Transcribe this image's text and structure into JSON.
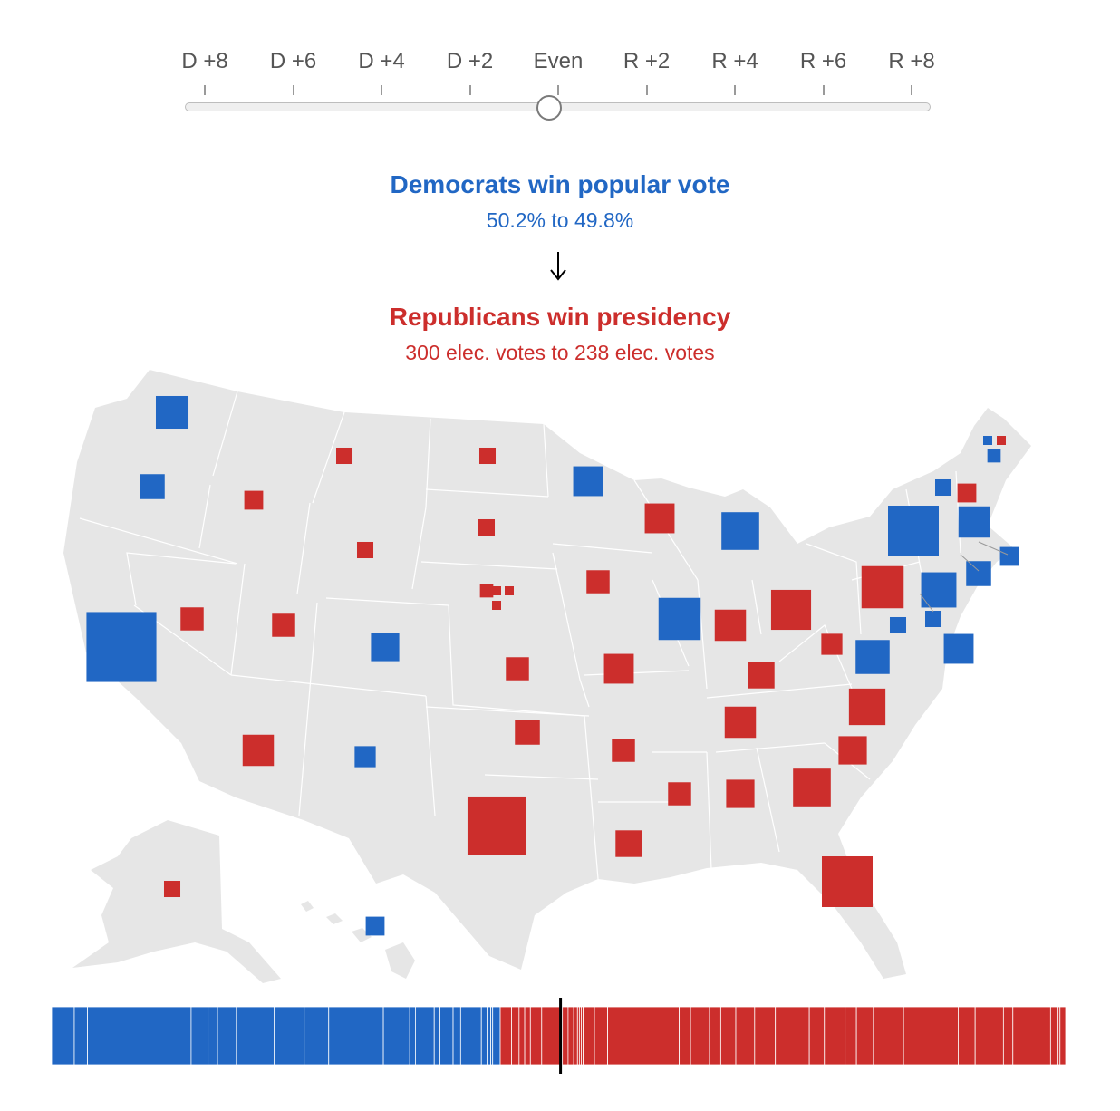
{
  "slider": {
    "ticks": [
      "D +8",
      "D +6",
      "D +4",
      "D +2",
      "Even",
      "R +2",
      "R +4",
      "R +6",
      "R +8"
    ],
    "selected": "Even",
    "value_margin": -0.2
  },
  "popular_vote": {
    "headline": "Democrats win popular vote",
    "detail": "50.2% to 49.8%",
    "color": "#2167c4"
  },
  "presidency": {
    "headline": "Republicans win presidency",
    "detail": "300 elec. votes to 238 elec. votes",
    "color": "#cc2e2c"
  },
  "colors": {
    "dem": "#2167c4",
    "rep": "#cc2e2c",
    "land": "#e6e6e6",
    "border": "#ffffff"
  },
  "map_data": {
    "states": [
      {
        "state": "WA",
        "ev": 12,
        "winner": "D"
      },
      {
        "state": "OR",
        "ev": 7,
        "winner": "D"
      },
      {
        "state": "CA",
        "ev": 55,
        "winner": "D"
      },
      {
        "state": "NV",
        "ev": 6,
        "winner": "R"
      },
      {
        "state": "ID",
        "ev": 4,
        "winner": "R"
      },
      {
        "state": "MT",
        "ev": 3,
        "winner": "R"
      },
      {
        "state": "WY",
        "ev": 3,
        "winner": "R"
      },
      {
        "state": "UT",
        "ev": 6,
        "winner": "R"
      },
      {
        "state": "AZ",
        "ev": 11,
        "winner": "R"
      },
      {
        "state": "CO",
        "ev": 9,
        "winner": "D"
      },
      {
        "state": "NM",
        "ev": 5,
        "winner": "D"
      },
      {
        "state": "ND",
        "ev": 3,
        "winner": "R"
      },
      {
        "state": "SD",
        "ev": 3,
        "winner": "R"
      },
      {
        "state": "NE",
        "ev": 2,
        "winner": "R"
      },
      {
        "state": "NE-1",
        "ev": 1,
        "winner": "R"
      },
      {
        "state": "NE-2",
        "ev": 1,
        "winner": "R"
      },
      {
        "state": "NE-3",
        "ev": 1,
        "winner": "R"
      },
      {
        "state": "KS",
        "ev": 6,
        "winner": "R"
      },
      {
        "state": "OK",
        "ev": 7,
        "winner": "R"
      },
      {
        "state": "TX",
        "ev": 38,
        "winner": "R"
      },
      {
        "state": "MN",
        "ev": 10,
        "winner": "D"
      },
      {
        "state": "IA",
        "ev": 6,
        "winner": "R"
      },
      {
        "state": "MO",
        "ev": 10,
        "winner": "R"
      },
      {
        "state": "AR",
        "ev": 6,
        "winner": "R"
      },
      {
        "state": "LA",
        "ev": 8,
        "winner": "R"
      },
      {
        "state": "WI",
        "ev": 10,
        "winner": "R"
      },
      {
        "state": "IL",
        "ev": 20,
        "winner": "D"
      },
      {
        "state": "MI",
        "ev": 16,
        "winner": "D"
      },
      {
        "state": "IN",
        "ev": 11,
        "winner": "R"
      },
      {
        "state": "OH",
        "ev": 18,
        "winner": "R"
      },
      {
        "state": "KY",
        "ev": 8,
        "winner": "R"
      },
      {
        "state": "TN",
        "ev": 11,
        "winner": "R"
      },
      {
        "state": "MS",
        "ev": 6,
        "winner": "R"
      },
      {
        "state": "AL",
        "ev": 9,
        "winner": "R"
      },
      {
        "state": "GA",
        "ev": 16,
        "winner": "R"
      },
      {
        "state": "FL",
        "ev": 29,
        "winner": "R"
      },
      {
        "state": "SC",
        "ev": 9,
        "winner": "R"
      },
      {
        "state": "NC",
        "ev": 15,
        "winner": "R"
      },
      {
        "state": "VA",
        "ev": 13,
        "winner": "D"
      },
      {
        "state": "WV",
        "ev": 5,
        "winner": "R"
      },
      {
        "state": "PA",
        "ev": 20,
        "winner": "R"
      },
      {
        "state": "NY",
        "ev": 29,
        "winner": "D"
      },
      {
        "state": "NJ",
        "ev": 14,
        "winner": "D"
      },
      {
        "state": "DE",
        "ev": 3,
        "winner": "D"
      },
      {
        "state": "MD",
        "ev": 10,
        "winner": "D"
      },
      {
        "state": "DC",
        "ev": 3,
        "winner": "D"
      },
      {
        "state": "CT",
        "ev": 7,
        "winner": "D"
      },
      {
        "state": "RI",
        "ev": 4,
        "winner": "D"
      },
      {
        "state": "MA",
        "ev": 11,
        "winner": "D"
      },
      {
        "state": "VT",
        "ev": 3,
        "winner": "D"
      },
      {
        "state": "NH",
        "ev": 4,
        "winner": "R"
      },
      {
        "state": "ME",
        "ev": 2,
        "winner": "D"
      },
      {
        "state": "ME-1",
        "ev": 1,
        "winner": "D"
      },
      {
        "state": "ME-2",
        "ev": 1,
        "winner": "R"
      },
      {
        "state": "AK",
        "ev": 3,
        "winner": "R"
      },
      {
        "state": "HI",
        "ev": 4,
        "winner": "D"
      }
    ]
  },
  "ev_bar": {
    "total": 538,
    "dem": 238,
    "rep": 300,
    "threshold": 270
  }
}
